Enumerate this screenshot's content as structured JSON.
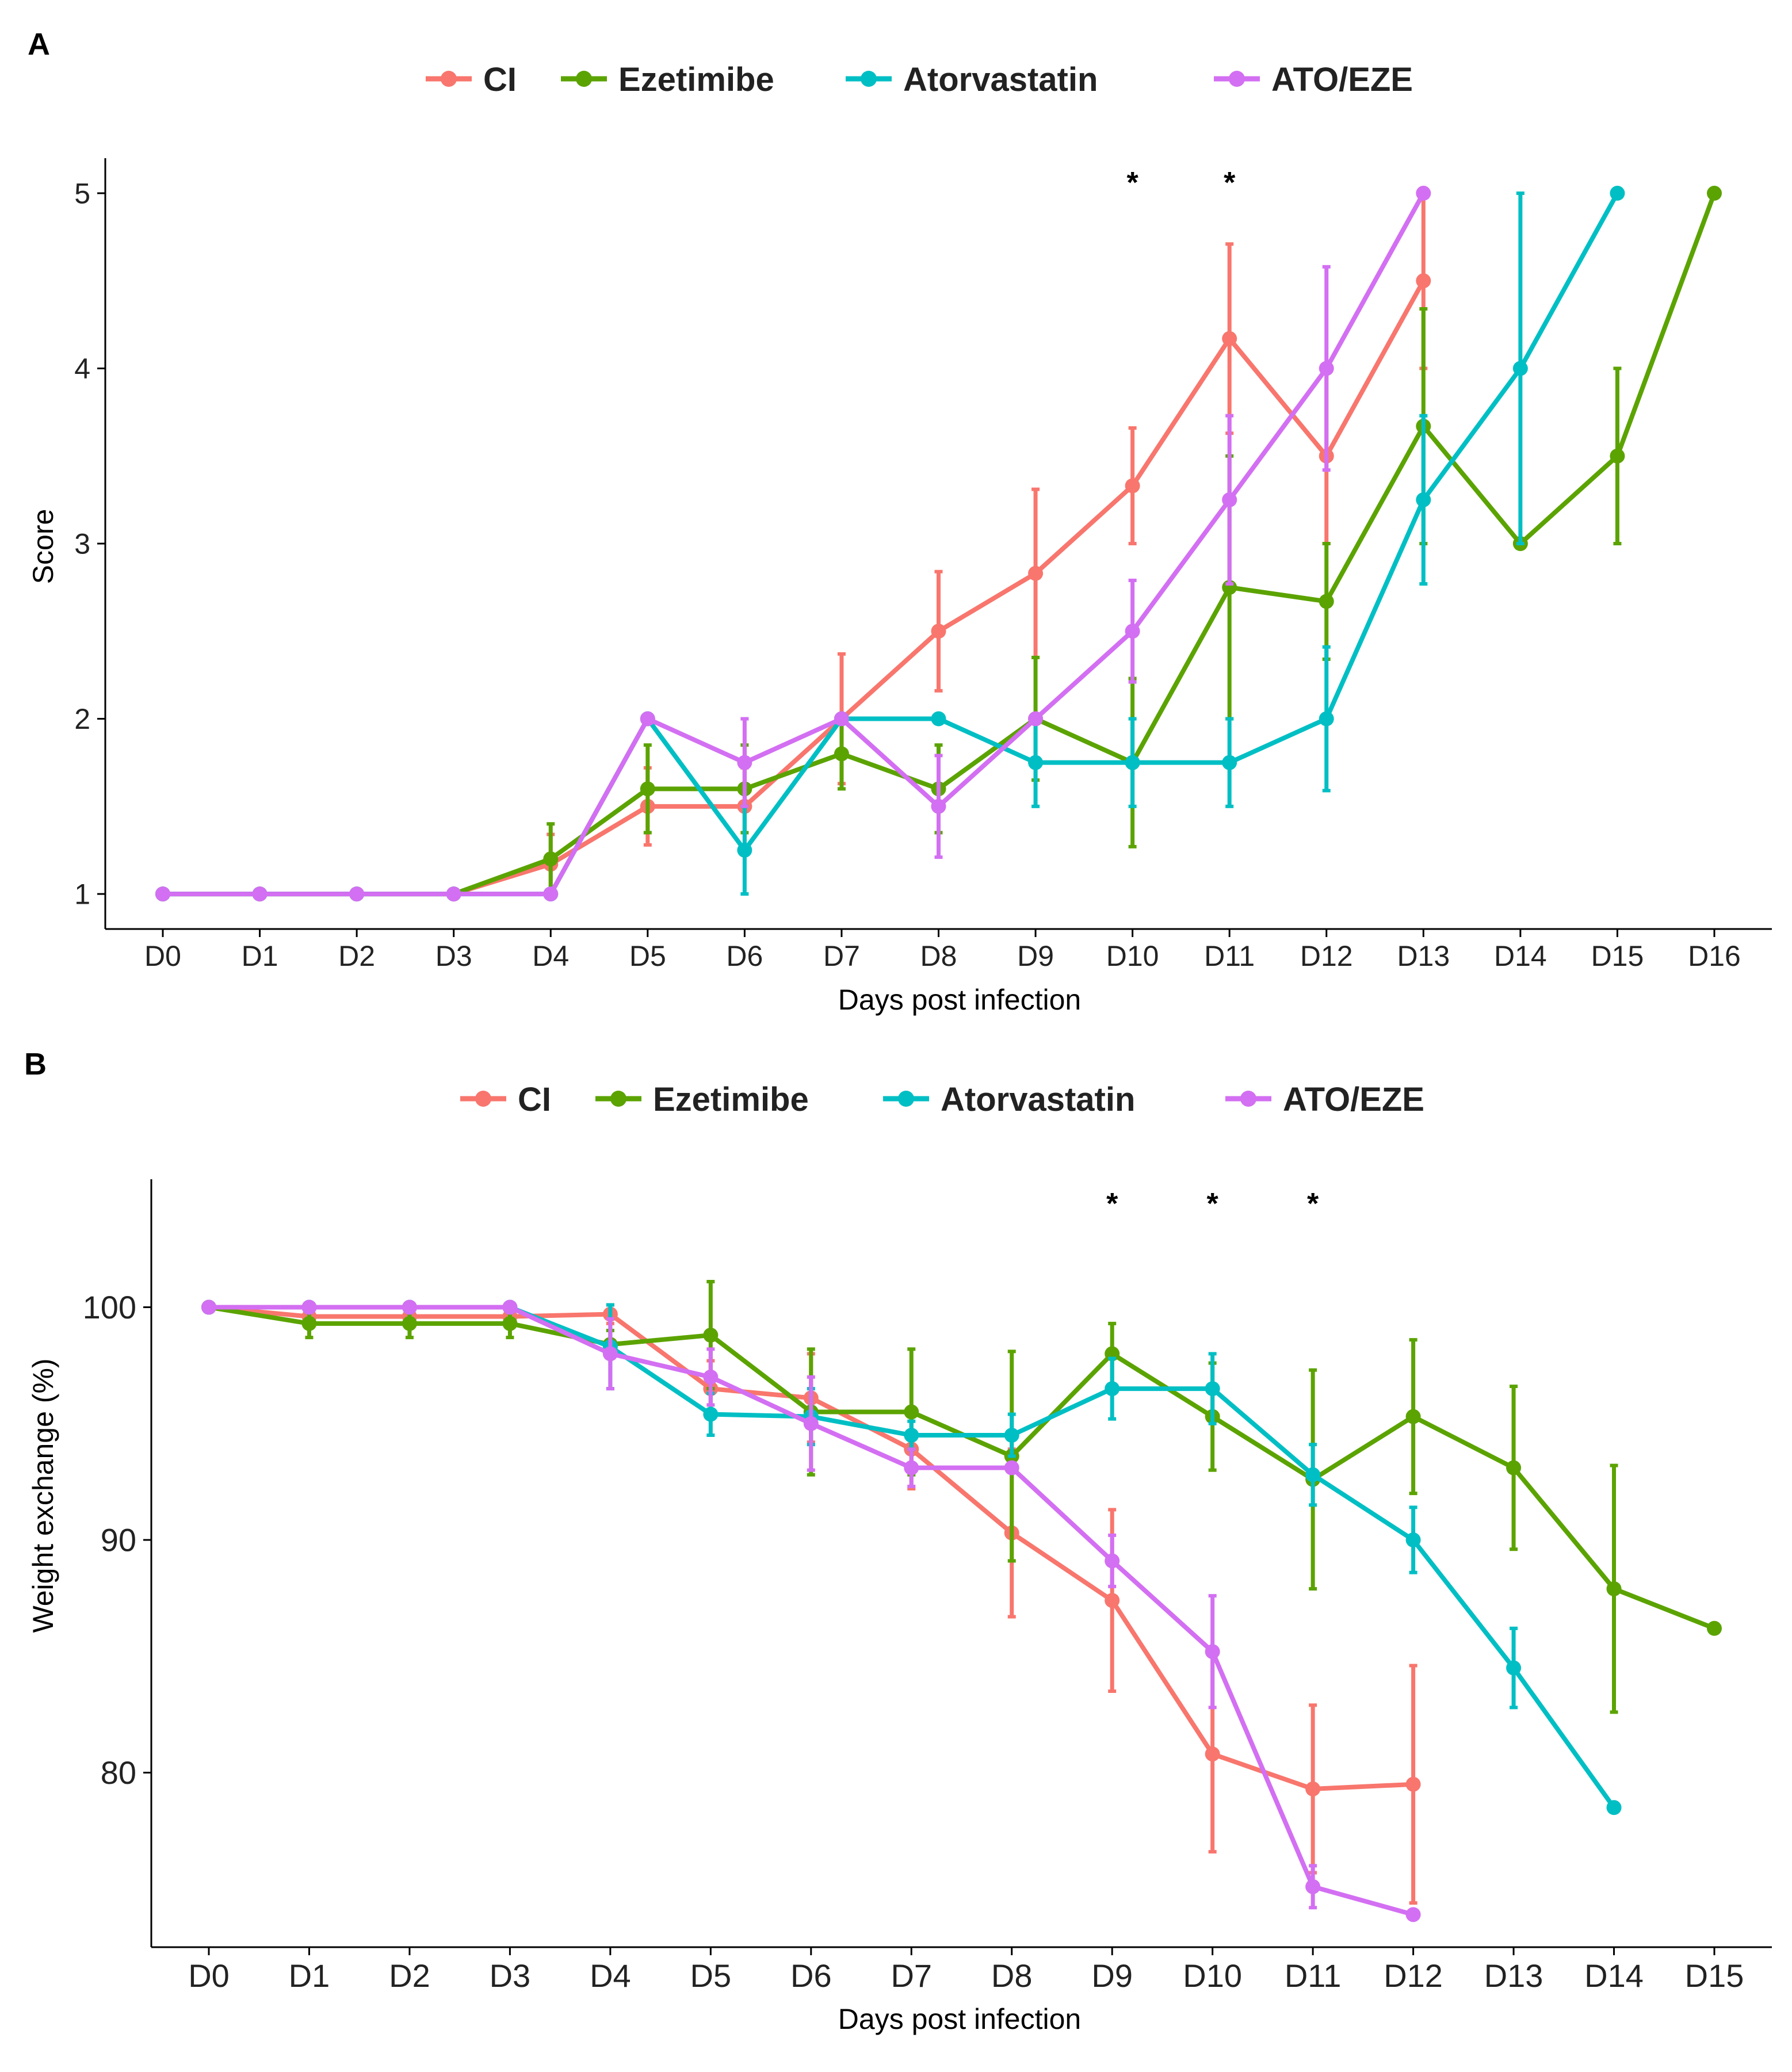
{
  "colors": {
    "CI": "#F8766D",
    "Ezetimibe": "#5BA300",
    "Atorvastatin": "#00BFC4",
    "ATO/EZE": "#D36FF2",
    "axis": "#000000",
    "text": "#222222"
  },
  "chart_data": [
    {
      "panel_label": "A",
      "type": "line",
      "xlabel": "Days post infection",
      "ylabel": "Score",
      "categories": [
        "D0",
        "D1",
        "D2",
        "D3",
        "D4",
        "D5",
        "D6",
        "D7",
        "D8",
        "D9",
        "D10",
        "D11",
        "D12",
        "D13",
        "D14",
        "D15",
        "D16"
      ],
      "ylim": [
        0.8,
        5.2
      ],
      "yticks": [
        1,
        2,
        3,
        4,
        5
      ],
      "grid": false,
      "legend": [
        "CI",
        "Ezetimibe",
        "Atorvastatin",
        "ATO/EZE"
      ],
      "legend_position": "top",
      "significance": [
        {
          "x": "D10",
          "label": "*"
        },
        {
          "x": "D11",
          "label": "*"
        }
      ],
      "series": [
        {
          "name": "CI",
          "values": [
            1,
            1,
            1,
            1,
            1.17,
            1.5,
            1.5,
            2.0,
            2.5,
            2.83,
            3.33,
            4.17,
            3.5,
            4.5,
            null,
            null,
            null
          ],
          "errors": [
            0,
            0,
            0,
            0,
            0.17,
            0.22,
            0.22,
            0.37,
            0.34,
            0.48,
            0.33,
            0.54,
            0.5,
            0.5,
            null,
            null,
            null
          ]
        },
        {
          "name": "Ezetimibe",
          "values": [
            1,
            1,
            1,
            1,
            1.2,
            1.6,
            1.6,
            1.8,
            1.6,
            2.0,
            1.75,
            2.75,
            2.67,
            3.67,
            3.0,
            3.5,
            5.0
          ],
          "errors": [
            0,
            0,
            0,
            0,
            0.2,
            0.25,
            0.25,
            0.2,
            0.25,
            0.35,
            0.48,
            0.75,
            0.33,
            0.67,
            0,
            0.5,
            0
          ]
        },
        {
          "name": "Atorvastatin",
          "values": [
            1,
            1,
            1,
            1,
            1.0,
            2.0,
            1.25,
            2.0,
            2.0,
            1.75,
            1.75,
            1.75,
            2.0,
            3.25,
            4.0,
            5.0,
            null
          ],
          "errors": [
            0,
            0,
            0,
            0,
            0,
            0,
            0.25,
            0,
            0,
            0.25,
            0.25,
            0.25,
            0.41,
            0.48,
            1.0,
            0,
            null
          ]
        },
        {
          "name": "ATO/EZE",
          "values": [
            1,
            1,
            1,
            1,
            1.0,
            2.0,
            1.75,
            2.0,
            1.5,
            2.0,
            2.5,
            3.25,
            4.0,
            5.0,
            null,
            null,
            null
          ],
          "errors": [
            0,
            0,
            0,
            0,
            0,
            0,
            0.25,
            0,
            0.29,
            0,
            0.29,
            0.48,
            0.58,
            0,
            null,
            null,
            null
          ]
        }
      ]
    },
    {
      "panel_label": "B",
      "type": "line",
      "xlabel": "Days post infection",
      "ylabel": "Weight exchange (%)",
      "categories": [
        "D0",
        "D1",
        "D2",
        "D3",
        "D4",
        "D5",
        "D6",
        "D7",
        "D8",
        "D9",
        "D10",
        "D11",
        "D12",
        "D13",
        "D14",
        "D15"
      ],
      "ylim": [
        72.5,
        105.5
      ],
      "yticks": [
        80,
        90,
        100
      ],
      "grid": false,
      "legend": [
        "CI",
        "Ezetimibe",
        "Atorvastatin",
        "ATO/EZE"
      ],
      "legend_position": "top",
      "significance": [
        {
          "x": "D9",
          "label": "*"
        },
        {
          "x": "D10",
          "label": "*"
        },
        {
          "x": "D11",
          "label": "*"
        }
      ],
      "series": [
        {
          "name": "CI",
          "values": [
            100,
            99.6,
            99.6,
            99.6,
            99.7,
            96.5,
            96.1,
            93.9,
            90.3,
            87.4,
            80.8,
            79.3,
            79.5,
            null,
            null,
            null
          ],
          "errors": [
            0,
            0.3,
            0.3,
            0.3,
            0.4,
            1.2,
            1.9,
            1.7,
            3.6,
            3.9,
            4.2,
            3.6,
            5.1,
            null,
            null,
            null
          ]
        },
        {
          "name": "Ezetimibe",
          "values": [
            100,
            99.3,
            99.3,
            99.3,
            98.4,
            98.8,
            95.5,
            95.5,
            93.6,
            98.0,
            95.3,
            92.6,
            95.3,
            93.1,
            87.9,
            86.2
          ],
          "errors": [
            0,
            0.6,
            0.6,
            0.6,
            0.6,
            2.3,
            2.7,
            2.7,
            4.5,
            1.3,
            2.3,
            4.7,
            3.3,
            3.5,
            5.3,
            0
          ]
        },
        {
          "name": "Atorvastatin",
          "values": [
            100,
            100,
            100,
            100,
            98.3,
            95.4,
            95.3,
            94.5,
            94.5,
            96.5,
            96.5,
            92.8,
            90.0,
            84.5,
            78.5,
            null
          ],
          "errors": [
            0,
            0,
            0,
            0,
            1.8,
            0.9,
            1.2,
            0.6,
            0.9,
            1.3,
            1.5,
            1.3,
            1.4,
            1.7,
            0,
            null
          ]
        },
        {
          "name": "ATO/EZE",
          "values": [
            100,
            100,
            100,
            100,
            98.0,
            97.0,
            95.0,
            93.1,
            93.1,
            89.1,
            85.2,
            75.1,
            73.9,
            null,
            null,
            null
          ],
          "errors": [
            0,
            0,
            0,
            0,
            1.5,
            1.2,
            2.0,
            0.8,
            0,
            1.1,
            2.4,
            0.9,
            0,
            null,
            null,
            null
          ]
        }
      ]
    }
  ]
}
